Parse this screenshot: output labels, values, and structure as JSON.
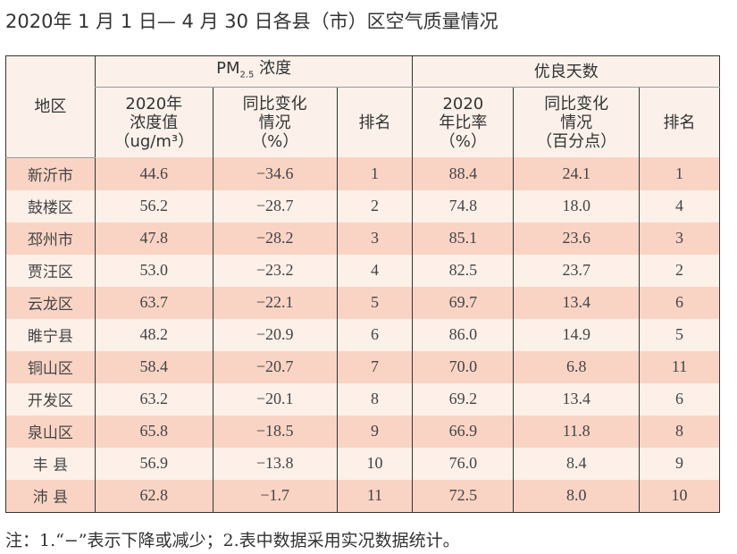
{
  "title": "2020年 1 月 1 日— 4 月 30 日各县（市）区空气质量情况",
  "headers": {
    "region": "地区",
    "pm_group": "PM",
    "pm_sub": "2.5",
    "pm_group_suffix": " 浓度",
    "good_group": "优良天数",
    "pm_value": [
      "2020年",
      "浓度值",
      "（ug/m³）"
    ],
    "pm_change": [
      "同比变化",
      "情况",
      "（%）"
    ],
    "pm_rank": "排名",
    "good_rate": [
      "2020",
      "年比率",
      "（%）"
    ],
    "good_change": [
      "同比变化",
      "情况",
      "（百分点）"
    ],
    "good_rank": "排名"
  },
  "rows": [
    [
      "新沂市",
      "44.6",
      "−34.6",
      "1",
      "88.4",
      "24.1",
      "1"
    ],
    [
      "鼓楼区",
      "56.2",
      "−28.7",
      "2",
      "74.8",
      "18.0",
      "4"
    ],
    [
      "邳州市",
      "47.8",
      "−28.2",
      "3",
      "85.1",
      "23.6",
      "3"
    ],
    [
      "贾汪区",
      "53.0",
      "−23.2",
      "4",
      "82.5",
      "23.7",
      "2"
    ],
    [
      "云龙区",
      "63.7",
      "−22.1",
      "5",
      "69.7",
      "13.4",
      "6"
    ],
    [
      "睢宁县",
      "48.2",
      "−20.9",
      "6",
      "86.0",
      "14.9",
      "5"
    ],
    [
      "铜山区",
      "58.4",
      "−20.7",
      "7",
      "70.0",
      "6.8",
      "11"
    ],
    [
      "开发区",
      "63.2",
      "−20.1",
      "8",
      "69.2",
      "13.4",
      "6"
    ],
    [
      "泉山区",
      "65.8",
      "−18.5",
      "9",
      "66.9",
      "11.8",
      "8"
    ],
    [
      "丰 县",
      "56.9",
      "−13.8",
      "10",
      "76.0",
      "8.4",
      "9"
    ],
    [
      "沛 县",
      "62.8",
      "−1.7",
      "11",
      "72.5",
      "8.0",
      "10"
    ]
  ],
  "note": "注：1.“−”表示下降或减少；2.表中数据采用实况数据统计。",
  "colors": {
    "header_bg": "#fbf1ea",
    "row_odd": "#f9d4c4",
    "row_even": "#fdf0e9",
    "border": "#333333"
  }
}
